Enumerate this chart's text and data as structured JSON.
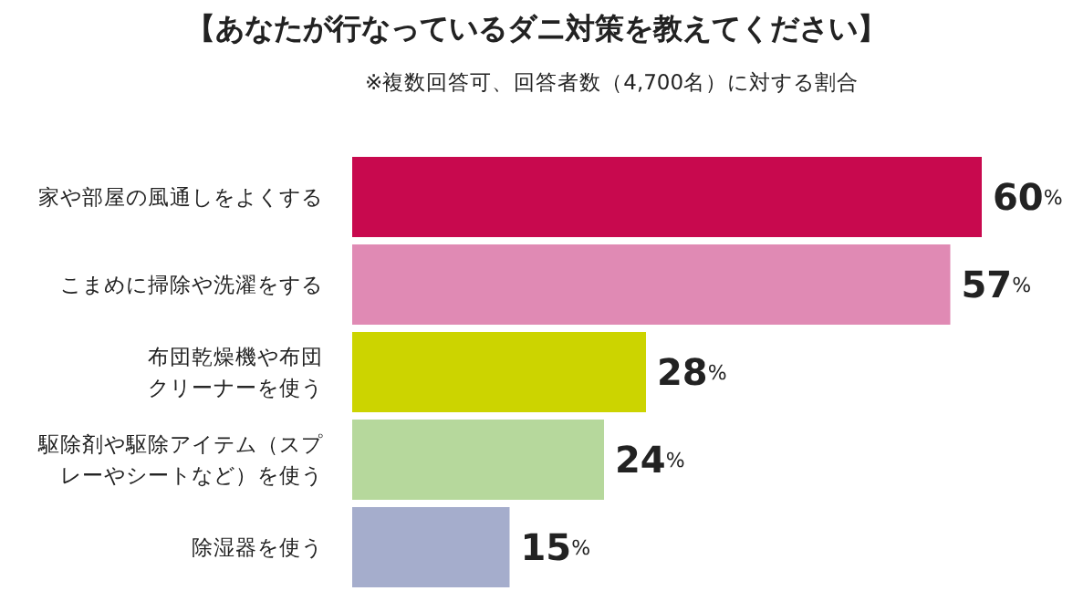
{
  "chart_data": {
    "type": "bar",
    "orientation": "horizontal",
    "title": "【あなたが行なっているダニ対策を教えてください】",
    "subtitle": "※複数回答可、回答者数（4,700名）に対する割合",
    "categories": [
      "家や部屋の風通しをよくする",
      "こまめに掃除や洗濯をする",
      "布団乾燥機や布団クリーナーを使う",
      "駆除剤や駆除アイテム（スプレーやシートなど）を使う",
      "除湿器を使う"
    ],
    "values": [
      60,
      57,
      28,
      24,
      15
    ],
    "colors": [
      "#c8094e",
      "#e08ab4",
      "#ccd400",
      "#b6d89c",
      "#a5adcc"
    ],
    "value_labels": [
      "60%",
      "57%",
      "28%",
      "24%",
      "15%"
    ],
    "grid": false,
    "legend": false
  }
}
